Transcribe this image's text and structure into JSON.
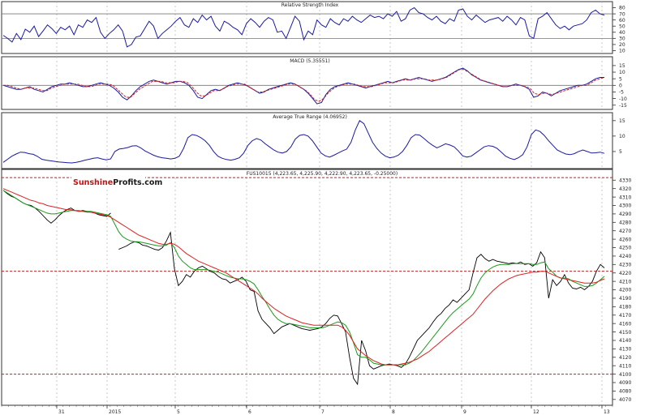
{
  "chart_data": [
    {
      "type": "line",
      "title": "Relative Strength Index",
      "ylim": [
        8,
        82
      ],
      "yticks": [
        10,
        20,
        30,
        40,
        50,
        60,
        70,
        80
      ],
      "reference_lines": [
        30,
        70
      ],
      "series": [
        {
          "color": "#1a1aa0",
          "values": [
            35,
            30,
            24,
            38,
            28,
            45,
            40,
            50,
            33,
            42,
            52,
            46,
            38,
            48,
            44,
            50,
            36,
            52,
            48,
            60,
            56,
            64,
            40,
            30,
            38,
            44,
            52,
            42,
            16,
            20,
            32,
            34,
            46,
            58,
            50,
            30,
            38,
            44,
            50,
            58,
            64,
            52,
            48,
            62,
            56,
            68,
            60,
            66,
            50,
            42,
            58,
            54,
            48,
            44,
            36,
            54,
            62,
            56,
            48,
            58,
            64,
            60,
            40,
            42,
            30,
            48,
            66,
            58,
            28,
            42,
            36,
            60,
            52,
            48,
            62,
            56,
            52,
            62,
            58,
            66,
            60,
            56,
            62,
            68,
            64,
            66,
            62,
            70,
            66,
            74,
            58,
            62,
            76,
            80,
            72,
            70,
            64,
            60,
            66,
            58,
            54,
            62,
            58,
            76,
            78,
            66,
            60,
            68,
            62,
            56,
            60,
            62,
            64,
            58,
            66,
            60,
            52,
            64,
            60,
            34,
            30,
            62,
            66,
            72,
            62,
            52,
            46,
            50,
            44,
            50,
            52,
            54,
            60,
            72,
            76,
            70,
            68
          ]
        }
      ]
    },
    {
      "type": "line",
      "title": "MACD (5.35551)",
      "ylim": [
        -17,
        18
      ],
      "yticks": [
        -15,
        -10,
        -5,
        0,
        5,
        10,
        15
      ],
      "series": [
        {
          "color": "#1a1aa0",
          "values": [
            0,
            -1,
            -2,
            -3,
            -3,
            -2,
            -1,
            -3,
            -4,
            -5,
            -3,
            -1,
            0,
            1,
            1,
            2,
            1,
            0,
            -1,
            -1,
            0,
            1,
            2,
            1,
            0,
            -2,
            -5,
            -9,
            -11,
            -8,
            -4,
            -1,
            1,
            3,
            4,
            3,
            2,
            1,
            2,
            3,
            3,
            2,
            0,
            -4,
            -9,
            -10,
            -7,
            -4,
            -3,
            -4,
            -2,
            0,
            1,
            2,
            1,
            0,
            -2,
            -4,
            -6,
            -5,
            -3,
            -2,
            -1,
            0,
            1,
            2,
            1,
            -1,
            -3,
            -6,
            -10,
            -14,
            -13,
            -7,
            -3,
            -1,
            0,
            1,
            2,
            1,
            0,
            -1,
            -2,
            -1,
            0,
            1,
            2,
            3,
            2,
            3,
            4,
            5,
            4,
            5,
            6,
            5,
            4,
            3,
            4,
            5,
            6,
            8,
            10,
            12,
            13,
            11,
            8,
            6,
            4,
            3,
            2,
            1,
            0,
            -1,
            -1,
            0,
            1,
            0,
            -1,
            -3,
            -9,
            -8,
            -5,
            -6,
            -8,
            -6,
            -4,
            -3,
            -2,
            -1,
            0,
            0,
            1,
            3,
            5,
            6,
            6
          ]
        },
        {
          "color": "#cc2222",
          "dashed": true,
          "values": [
            0,
            0,
            -1,
            -2,
            -3,
            -2,
            -2,
            -2,
            -3,
            -4,
            -4,
            -2,
            -1,
            0,
            1,
            1,
            1,
            1,
            0,
            -1,
            -1,
            0,
            1,
            1,
            1,
            0,
            -3,
            -6,
            -9,
            -9,
            -6,
            -3,
            -1,
            1,
            3,
            3,
            3,
            2,
            2,
            2,
            3,
            3,
            2,
            -1,
            -5,
            -8,
            -8,
            -6,
            -4,
            -4,
            -3,
            -1,
            0,
            1,
            1,
            1,
            -1,
            -3,
            -5,
            -5,
            -4,
            -3,
            -2,
            -1,
            0,
            1,
            1,
            0,
            -2,
            -4,
            -7,
            -11,
            -12,
            -10,
            -6,
            -3,
            -1,
            0,
            1,
            1,
            1,
            0,
            -1,
            -1,
            -1,
            0,
            1,
            2,
            2,
            2,
            3,
            4,
            4,
            4,
            5,
            5,
            5,
            4,
            4,
            4,
            5,
            6,
            8,
            10,
            12,
            12,
            10,
            8,
            6,
            4,
            3,
            2,
            1,
            0,
            -1,
            -1,
            0,
            0,
            0,
            -1,
            -2,
            -6,
            -7,
            -6,
            -6,
            -7,
            -6,
            -5,
            -4,
            -3,
            -2,
            -1,
            0,
            0,
            2,
            4,
            5,
            6
          ]
        }
      ]
    },
    {
      "type": "line",
      "title": "Average True Range (4.06952)",
      "ylim": [
        0,
        16
      ],
      "yticks": [
        5,
        10,
        15
      ],
      "series": [
        {
          "color": "#1a1aa0",
          "values": [
            1.5,
            2.5,
            3.5,
            4.2,
            4.8,
            4.7,
            4.3,
            4.1,
            3.4,
            2.5,
            2.2,
            2,
            1.8,
            1.6,
            1.5,
            1.4,
            1.3,
            1.5,
            1.8,
            2.2,
            2.5,
            2.8,
            3,
            2.6,
            2.3,
            2.6,
            5,
            5.8,
            6,
            6.3,
            6.8,
            6.9,
            6.2,
            5.2,
            4.5,
            3.8,
            3.3,
            3,
            2.8,
            2.6,
            2.8,
            3.5,
            6,
            9.5,
            10.5,
            10.2,
            9.5,
            8.5,
            7,
            5,
            3.5,
            2.8,
            2.4,
            2.2,
            2.5,
            3,
            4.5,
            7,
            8.5,
            9.2,
            8.7,
            7.5,
            6.5,
            5.5,
            4.8,
            4.5,
            5,
            6.5,
            9,
            10.2,
            10.5,
            10,
            8.5,
            6.5,
            4.5,
            3.6,
            3.2,
            3.8,
            4.5,
            5.2,
            5.8,
            8,
            12,
            15,
            14,
            11,
            8,
            6,
            4.5,
            3.5,
            3,
            3.2,
            3.8,
            5,
            7,
            9.5,
            10.5,
            10.3,
            9.2,
            8,
            7,
            6.2,
            6.8,
            7.5,
            7.1,
            6.5,
            5.2,
            3.6,
            3.2,
            3.5,
            4.5,
            5.5,
            6.5,
            6.9,
            6.7,
            6,
            4.8,
            3.5,
            2.8,
            2.4,
            3,
            4,
            6.5,
            10.5,
            12,
            11.5,
            10.2,
            8.5,
            7,
            5.5,
            4.8,
            4.2,
            4,
            4.3,
            5,
            5.5,
            5,
            4.5,
            4.6,
            4.8,
            4.4
          ]
        }
      ]
    },
    {
      "type": "line",
      "title": "FUS10015 (4,223.65, 4,225.90, 4,222.90, 4,223.65, -0.25000)",
      "ylim": [
        4065,
        4337
      ],
      "yticks": [
        4070,
        4080,
        4090,
        4100,
        4110,
        4120,
        4130,
        4140,
        4150,
        4160,
        4170,
        4180,
        4190,
        4200,
        4210,
        4220,
        4230,
        4240,
        4250,
        4260,
        4270,
        4280,
        4290,
        4300,
        4310,
        4320,
        4330
      ],
      "reference_lines": [
        4100,
        4222,
        4333
      ],
      "x_labels": [
        "31",
        "2015",
        "5",
        "6",
        "7",
        "8",
        "9",
        "12",
        "13"
      ],
      "series": [
        {
          "color": "#000000",
          "values": [
            4318,
            4314,
            4311,
            4309,
            4306,
            4303,
            4301,
            4300,
            4297,
            4293,
            4288,
            4283,
            4279,
            4283,
            4288,
            4292,
            4295,
            4297,
            4294,
            4293,
            4294,
            4293,
            4292,
            4291,
            4289,
            4288,
            4287,
            4291,
            null,
            4248,
            4250,
            4252,
            4255,
            4257,
            4256,
            4253,
            4252,
            4250,
            4248,
            4247,
            4250,
            4258,
            4268,
            4225,
            4205,
            4210,
            4218,
            4215,
            4222,
            4226,
            4228,
            4225,
            4222,
            4220,
            4216,
            4213,
            4212,
            4208,
            4210,
            4212,
            4215,
            4210,
            4200,
            4198,
            4175,
            4165,
            4160,
            4155,
            4148,
            4152,
            4156,
            4158,
            4160,
            4158,
            4156,
            4154,
            4153,
            4152,
            4153,
            4154,
            4156,
            4160,
            4166,
            4170,
            4169,
            4160,
            4150,
            4120,
            4095,
            4088,
            4140,
            4128,
            4110,
            4106,
            4108,
            4110,
            4111,
            4112,
            4111,
            4110,
            4108,
            4112,
            4120,
            4130,
            4140,
            4145,
            4150,
            4155,
            4162,
            4168,
            4172,
            4178,
            4182,
            4188,
            4185,
            4190,
            4195,
            4200,
            4220,
            4238,
            4242,
            4237,
            4234,
            4236,
            4234,
            4233,
            4232,
            4231,
            4232,
            4231,
            4233,
            4230,
            4231,
            4228,
            4232,
            4245,
            4238,
            4190,
            4212,
            4205,
            4210,
            4218,
            4208,
            4202,
            4201,
            4203,
            4200,
            4204,
            4210,
            4222,
            4230,
            4226
          ]
        },
        {
          "color": "#1a9a1a",
          "values": [
            4318,
            4315,
            4312,
            4309,
            4306,
            4303,
            4301,
            4299,
            4297,
            4295,
            4293,
            4291,
            4290,
            4290,
            4291,
            4292,
            4293,
            4294,
            4294,
            4294,
            4293,
            4293,
            4293,
            4292,
            4291,
            4290,
            4289,
            4287,
            4278,
            4269,
            4263,
            4260,
            4258,
            4257,
            4257,
            4256,
            4255,
            4254,
            4253,
            4252,
            4252,
            4253,
            4256,
            4250,
            4240,
            4234,
            4230,
            4226,
            4224,
            4224,
            4224,
            4224,
            4223,
            4222,
            4221,
            4219,
            4217,
            4215,
            4214,
            4213,
            4213,
            4212,
            4210,
            4207,
            4200,
            4192,
            4185,
            4177,
            4170,
            4165,
            4162,
            4160,
            4160,
            4159,
            4158,
            4157,
            4156,
            4155,
            4155,
            4155,
            4155,
            4156,
            4158,
            4160,
            4162,
            4161,
            4158,
            4150,
            4137,
            4123,
            4120,
            4120,
            4117,
            4113,
            4112,
            4111,
            4111,
            4111,
            4111,
            4111,
            4111,
            4111,
            4113,
            4116,
            4121,
            4126,
            4132,
            4138,
            4144,
            4150,
            4156,
            4162,
            4168,
            4173,
            4177,
            4181,
            4185,
            4189,
            4195,
            4205,
            4214,
            4220,
            4224,
            4227,
            4229,
            4230,
            4230,
            4230,
            4231,
            4231,
            4231,
            4231,
            4231,
            4230,
            4230,
            4232,
            4233,
            4225,
            4221,
            4216,
            4214,
            4214,
            4213,
            4210,
            4208,
            4206,
            4204,
            4204,
            4205,
            4208,
            4212,
            4216
          ]
        },
        {
          "color": "#dd2222",
          "values": [
            4320,
            4318,
            4316,
            4314,
            4312,
            4310,
            4308,
            4306,
            4305,
            4303,
            4302,
            4300,
            4299,
            4298,
            4297,
            4296,
            4295,
            4295,
            4294,
            4293,
            4293,
            4292,
            4292,
            4291,
            4290,
            4289,
            4288,
            4286,
            4283,
            4280,
            4277,
            4274,
            4271,
            4268,
            4265,
            4263,
            4261,
            4259,
            4257,
            4255,
            4254,
            4254,
            4255,
            4254,
            4251,
            4247,
            4243,
            4240,
            4237,
            4234,
            4232,
            4230,
            4228,
            4226,
            4224,
            4222,
            4220,
            4217,
            4214,
            4211,
            4208,
            4205,
            4202,
            4199,
            4195,
            4190,
            4186,
            4182,
            4178,
            4175,
            4172,
            4169,
            4167,
            4165,
            4163,
            4161,
            4160,
            4159,
            4158,
            4158,
            4158,
            4158,
            4158,
            4158,
            4158,
            4156,
            4152,
            4146,
            4138,
            4130,
            4126,
            4122,
            4119,
            4116,
            4114,
            4112,
            4111,
            4111,
            4111,
            4111,
            4112,
            4113,
            4114,
            4116,
            4118,
            4121,
            4124,
            4127,
            4131,
            4135,
            4139,
            4143,
            4147,
            4151,
            4155,
            4159,
            4163,
            4167,
            4171,
            4177,
            4183,
            4189,
            4194,
            4199,
            4203,
            4207,
            4210,
            4213,
            4215,
            4217,
            4218,
            4219,
            4220,
            4221,
            4221,
            4222,
            4222,
            4220,
            4218,
            4216,
            4214,
            4213,
            4212,
            4211,
            4210,
            4209,
            4208,
            4208,
            4208,
            4209,
            4211,
            4213
          ]
        }
      ]
    }
  ],
  "brand": {
    "name_part1": "Sunshine",
    "name_part2": "Profits.com",
    "part1_color": "#cc1111",
    "part2_color": "#1a1a1a"
  }
}
